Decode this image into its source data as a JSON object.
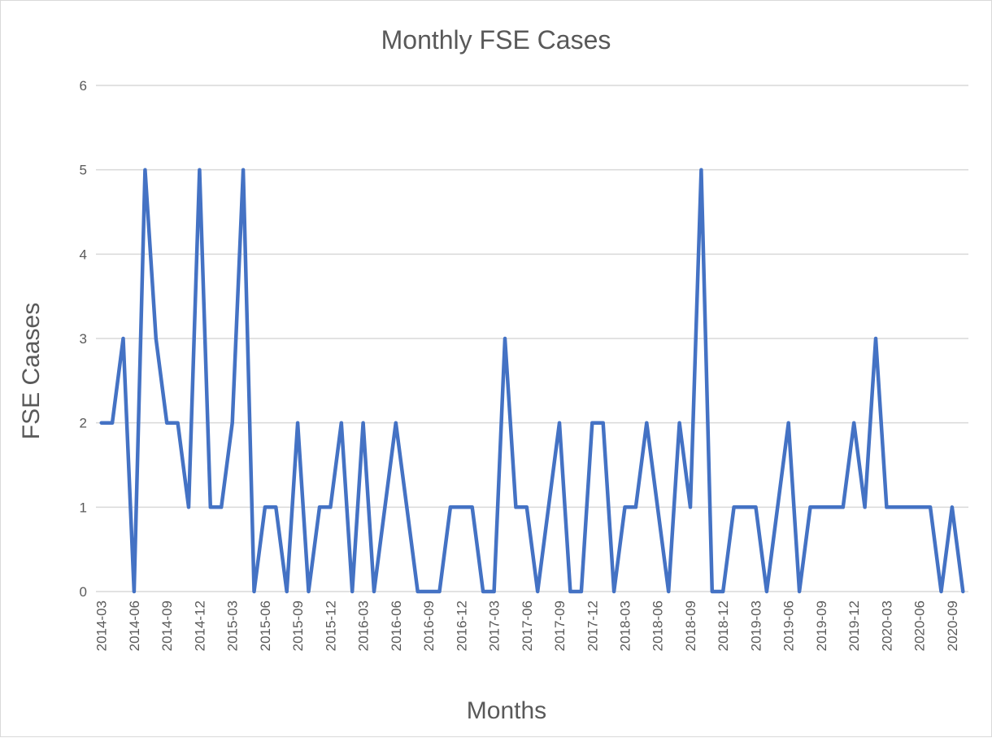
{
  "chart_data": {
    "type": "line",
    "title": "Monthly FSE Cases",
    "xlabel": "Months",
    "ylabel": "FSE Caases",
    "ylim": [
      0,
      6
    ],
    "yticks": [
      0,
      1,
      2,
      3,
      4,
      5,
      6
    ],
    "grid": true,
    "legend": "none",
    "line_color": "#4472C4",
    "categories": [
      "2014-03",
      "2014-04",
      "2014-05",
      "2014-06",
      "2014-07",
      "2014-08",
      "2014-09",
      "2014-10",
      "2014-11",
      "2014-12",
      "2015-01",
      "2015-02",
      "2015-03",
      "2015-04",
      "2015-05",
      "2015-06",
      "2015-07",
      "2015-08",
      "2015-09",
      "2015-10",
      "2015-11",
      "2015-12",
      "2016-01",
      "2016-02",
      "2016-03",
      "2016-04",
      "2016-05",
      "2016-06",
      "2016-07",
      "2016-08",
      "2016-09",
      "2016-10",
      "2016-11",
      "2016-12",
      "2017-01",
      "2017-02",
      "2017-03",
      "2017-04",
      "2017-05",
      "2017-06",
      "2017-07",
      "2017-08",
      "2017-09",
      "2017-10",
      "2017-11",
      "2017-12",
      "2018-01",
      "2018-02",
      "2018-03",
      "2018-04",
      "2018-05",
      "2018-06",
      "2018-07",
      "2018-08",
      "2018-09",
      "2018-10",
      "2018-11",
      "2018-12",
      "2019-01",
      "2019-02",
      "2019-03",
      "2019-04",
      "2019-05",
      "2019-06",
      "2019-07",
      "2019-08",
      "2019-09",
      "2019-10",
      "2019-11",
      "2019-12",
      "2020-01",
      "2020-02",
      "2020-03",
      "2020-04",
      "2020-05",
      "2020-06",
      "2020-07",
      "2020-08",
      "2020-09",
      "2020-10"
    ],
    "tick_labels": [
      "2014-03",
      "2014-06",
      "2014-09",
      "2014-12",
      "2015-03",
      "2015-06",
      "2015-09",
      "2015-12",
      "2016-03",
      "2016-06",
      "2016-09",
      "2016-12",
      "2017-03",
      "2017-06",
      "2017-09",
      "2017-12",
      "2018-03",
      "2018-06",
      "2018-09",
      "2018-12",
      "2019-03",
      "2019-06",
      "2019-09",
      "2019-12",
      "2020-03",
      "2020-06",
      "2020-09"
    ],
    "series": [
      {
        "name": "FSE Cases",
        "values": [
          2,
          2,
          3,
          0,
          5,
          3,
          2,
          2,
          1,
          5,
          1,
          1,
          2,
          5,
          0,
          1,
          1,
          0,
          2,
          0,
          1,
          1,
          2,
          0,
          2,
          0,
          1,
          2,
          1,
          0,
          0,
          0,
          1,
          1,
          1,
          0,
          0,
          3,
          1,
          1,
          0,
          1,
          2,
          0,
          0,
          2,
          2,
          0,
          1,
          1,
          2,
          1,
          0,
          2,
          1,
          5,
          0,
          0,
          1,
          1,
          1,
          0,
          1,
          2,
          0,
          1,
          1,
          1,
          1,
          2,
          1,
          3,
          1,
          1,
          1,
          1,
          1,
          0,
          1,
          0
        ]
      }
    ]
  }
}
